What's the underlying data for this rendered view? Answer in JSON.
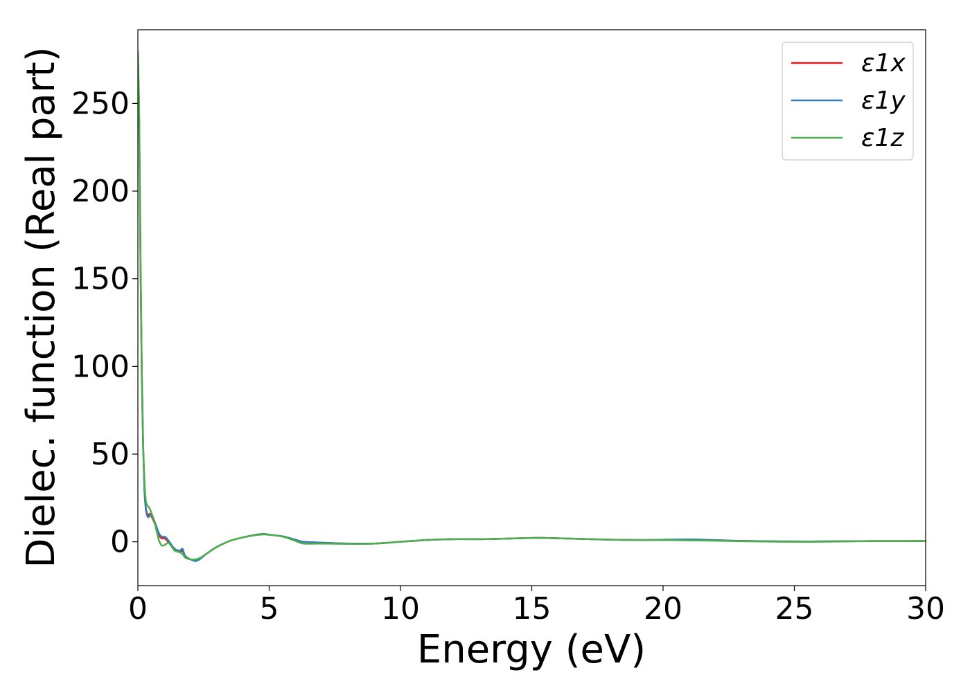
{
  "chart_data": {
    "type": "line",
    "title": "",
    "xlabel": "Energy (eV)",
    "ylabel": "Dielec. function (Real part)",
    "xlim": [
      0,
      30
    ],
    "ylim": [
      -25,
      292
    ],
    "xticks": [
      0,
      5,
      10,
      15,
      20,
      25,
      30
    ],
    "yticks": [
      0,
      50,
      100,
      150,
      200,
      250
    ],
    "grid": false,
    "legend_position": "top-right",
    "series": [
      {
        "name": "ε1x",
        "color": "#e41a1c",
        "x": [
          0,
          0.05,
          0.1,
          0.15,
          0.2,
          0.25,
          0.3,
          0.35,
          0.4,
          0.45,
          0.5,
          0.6,
          0.7,
          0.8,
          0.9,
          1.0,
          1.1,
          1.2,
          1.4,
          1.6,
          1.7,
          1.8,
          2.0,
          2.2,
          2.4,
          2.6,
          3.0,
          3.5,
          4.0,
          4.5,
          4.8,
          5.0,
          5.5,
          6.0,
          6.3,
          7.0,
          8.0,
          9.0,
          10.0,
          11.0,
          12.0,
          13.0,
          14.0,
          15.0,
          15.5,
          16.0,
          17.0,
          18.0,
          19.0,
          20.0,
          21.0,
          22.0,
          23.0,
          24.0,
          25.0,
          26.0,
          27.0,
          28.0,
          29.0,
          30.0
        ],
        "y": [
          278,
          240,
          160,
          95,
          55,
          30,
          20,
          16,
          15,
          16,
          15,
          12,
          8,
          4,
          2,
          2,
          1,
          -1,
          -4,
          -6,
          -5,
          -8,
          -10,
          -10.5,
          -9,
          -7,
          -3,
          0.5,
          2.5,
          4,
          4.5,
          4,
          3,
          1,
          0,
          -0.5,
          -1,
          -1,
          0,
          1,
          1.5,
          1.5,
          1.8,
          2.2,
          2.2,
          2,
          1.6,
          1.2,
          1,
          1,
          1,
          0.8,
          0.5,
          0.3,
          0.2,
          0.2,
          0.3,
          0.4,
          0.4,
          0.5
        ]
      },
      {
        "name": "ε1y",
        "color": "#377eb8",
        "x": [
          0,
          0.05,
          0.1,
          0.15,
          0.2,
          0.25,
          0.3,
          0.35,
          0.4,
          0.45,
          0.5,
          0.6,
          0.7,
          0.8,
          0.9,
          1.0,
          1.1,
          1.2,
          1.4,
          1.6,
          1.7,
          1.8,
          2.0,
          2.2,
          2.4,
          2.6,
          3.0,
          3.5,
          4.0,
          4.5,
          4.8,
          5.0,
          5.5,
          6.0,
          6.3,
          7.0,
          8.0,
          9.0,
          10.0,
          11.0,
          12.0,
          13.0,
          14.0,
          15.0,
          15.5,
          16.0,
          17.0,
          18.0,
          19.0,
          20.0,
          21.0,
          22.0,
          23.0,
          24.0,
          25.0,
          26.0,
          27.0,
          28.0,
          29.0,
          30.0
        ],
        "y": [
          276,
          238,
          158,
          94,
          54,
          29,
          19,
          15,
          14,
          15,
          15,
          13,
          9,
          5,
          3,
          3,
          2,
          0,
          -4,
          -5,
          -4,
          -8,
          -10,
          -11,
          -9.5,
          -7,
          -3,
          0.5,
          2.5,
          4,
          4.5,
          4,
          3.2,
          1.2,
          0,
          -0.5,
          -1,
          -1,
          0,
          1,
          1.5,
          1.5,
          1.8,
          2.2,
          2.2,
          2,
          1.6,
          1.2,
          1,
          1.2,
          1.4,
          1,
          0.5,
          0.3,
          0.2,
          0.2,
          0.3,
          0.4,
          0.4,
          0.5
        ]
      },
      {
        "name": "ε1z",
        "color": "#4daf4a",
        "x": [
          0,
          0.05,
          0.1,
          0.15,
          0.2,
          0.25,
          0.3,
          0.35,
          0.4,
          0.45,
          0.5,
          0.6,
          0.7,
          0.8,
          0.9,
          1.0,
          1.1,
          1.2,
          1.4,
          1.6,
          1.7,
          1.8,
          2.0,
          2.2,
          2.4,
          2.6,
          3.0,
          3.5,
          4.0,
          4.5,
          4.8,
          5.0,
          5.5,
          6.0,
          6.3,
          7.0,
          8.0,
          9.0,
          10.0,
          11.0,
          12.0,
          13.0,
          14.0,
          15.0,
          15.5,
          16.0,
          17.0,
          18.0,
          19.0,
          20.0,
          21.0,
          22.0,
          23.0,
          24.0,
          25.0,
          26.0,
          27.0,
          28.0,
          29.0,
          30.0
        ],
        "y": [
          280,
          245,
          165,
          98,
          58,
          35,
          24,
          21,
          20,
          19,
          17,
          13,
          7,
          1,
          -2,
          -2,
          -1,
          -1,
          -5,
          -6,
          -7,
          -9,
          -10,
          -10,
          -9,
          -7,
          -3,
          0.5,
          2.5,
          3.8,
          4.2,
          4,
          3,
          0.5,
          -1,
          -1,
          -1.2,
          -1,
          0,
          1,
          1.5,
          1.5,
          1.8,
          2.2,
          2.2,
          2,
          1.6,
          1.2,
          1,
          1,
          0.8,
          0.6,
          0.3,
          0.1,
          0,
          0,
          0.2,
          0.4,
          0.4,
          0.5
        ]
      }
    ]
  }
}
